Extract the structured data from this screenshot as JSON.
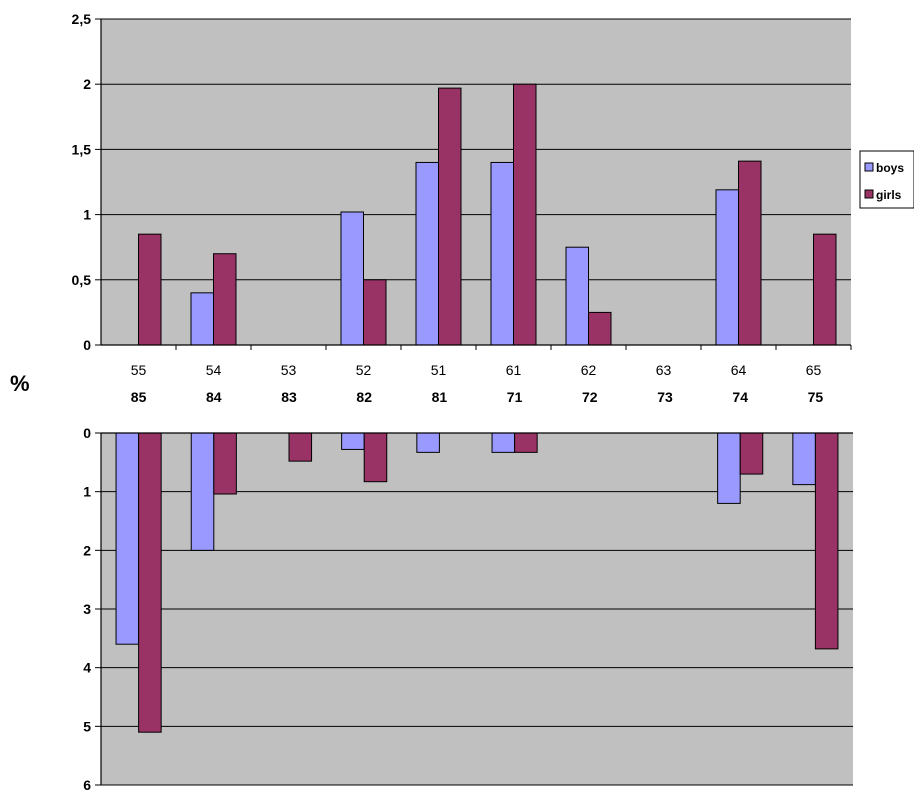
{
  "y_unit_label": "%",
  "colors": {
    "boys": "#9999ff",
    "girls": "#993366",
    "plot_bg": "#c0c0c0",
    "grid": "#000000"
  },
  "chart_data": [
    {
      "type": "bar",
      "categories": [
        "55",
        "54",
        "53",
        "52",
        "51",
        "61",
        "62",
        "63",
        "64",
        "65"
      ],
      "series": [
        {
          "name": "boys",
          "values": [
            0,
            0.4,
            0,
            1.02,
            1.4,
            1.4,
            0.75,
            0,
            1.19,
            0
          ]
        },
        {
          "name": "girls",
          "values": [
            0.85,
            0.7,
            0,
            0.5,
            1.97,
            2.0,
            0.25,
            0,
            1.41,
            0.85
          ]
        }
      ],
      "yticks": [
        "0",
        "0,5",
        "1",
        "1,5",
        "2",
        "2,5"
      ],
      "ylim": [
        0,
        2.5
      ],
      "grid": true,
      "legend": "right"
    },
    {
      "type": "bar",
      "categories": [
        "85",
        "84",
        "83",
        "82",
        "81",
        "71",
        "72",
        "73",
        "74",
        "75"
      ],
      "series": [
        {
          "name": "boys",
          "values": [
            3.6,
            2.0,
            0,
            0.28,
            0.33,
            0.33,
            0,
            0,
            1.2,
            0.88
          ]
        },
        {
          "name": "girls",
          "values": [
            5.1,
            1.04,
            0.48,
            0.83,
            0,
            0.33,
            0,
            0,
            0.7,
            3.68
          ]
        }
      ],
      "yticks": [
        "0",
        "1",
        "2",
        "3",
        "4",
        "5",
        "6"
      ],
      "ylim": [
        0,
        6
      ],
      "y_inverted": true,
      "grid": true
    }
  ]
}
